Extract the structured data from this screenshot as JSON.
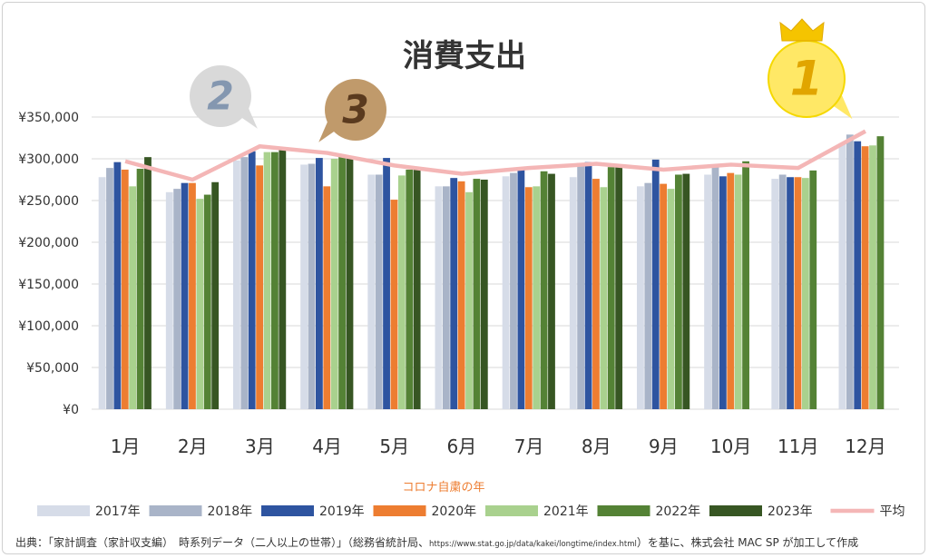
{
  "chart_data": {
    "type": "bar",
    "title": "消費支出",
    "categories": [
      "1月",
      "2月",
      "3月",
      "4月",
      "5月",
      "6月",
      "7月",
      "8月",
      "9月",
      "10月",
      "11月",
      "12月"
    ],
    "y_tick_labels": [
      "¥0",
      "¥50,000",
      "¥100,000",
      "¥150,000",
      "¥200,000",
      "¥250,000",
      "¥300,000",
      "¥350,000"
    ],
    "ylim": [
      0,
      350000
    ],
    "grid": true,
    "legend_position": "bottom",
    "series": [
      {
        "name": "2017年",
        "color": "#d6dce8",
        "values": [
          278000,
          260000,
          298000,
          293000,
          281000,
          267000,
          279000,
          278000,
          267000,
          281000,
          276000,
          318000
        ]
      },
      {
        "name": "2018年",
        "color": "#a9b4c8",
        "values": [
          289000,
          264000,
          302000,
          294000,
          281000,
          267000,
          283000,
          293000,
          271000,
          290000,
          281000,
          329000
        ]
      },
      {
        "name": "2019年",
        "color": "#2e54a0",
        "values": [
          296000,
          271000,
          309000,
          301000,
          301000,
          277000,
          287000,
          296000,
          299000,
          279000,
          278000,
          321000
        ]
      },
      {
        "name": "2020年",
        "color": "#ed7d31",
        "values": [
          287000,
          271000,
          292000,
          267000,
          251000,
          273000,
          266000,
          276000,
          270000,
          283000,
          278000,
          315000
        ]
      },
      {
        "name": "2021年",
        "color": "#a9d18e",
        "values": [
          267000,
          252000,
          308000,
          300000,
          280000,
          260000,
          267000,
          266000,
          264000,
          281000,
          277000,
          316000
        ]
      },
      {
        "name": "2022年",
        "color": "#548235",
        "values": [
          288000,
          257000,
          308000,
          304000,
          287000,
          276000,
          285000,
          290000,
          281000,
          297000,
          286000,
          327000
        ]
      },
      {
        "name": "2023年",
        "color": "#375623",
        "values": [
          302000,
          272000,
          313000,
          303000,
          287000,
          275000,
          282000,
          292000,
          282000,
          null,
          null,
          null
        ]
      }
    ],
    "average": {
      "name": "平均",
      "color": "#f4b6b6",
      "values": [
        297000,
        275000,
        315000,
        307000,
        292000,
        282000,
        289000,
        294000,
        287000,
        293000,
        289000,
        333000
      ]
    },
    "annotation": "コロナ自粛の年",
    "ranks": [
      {
        "label": "1",
        "month_index": 11,
        "fill": "#ffe866",
        "text_color": "#e1a500",
        "crown": true
      },
      {
        "label": "2",
        "month_index": 1,
        "fill": "#d9d9d9",
        "text_color": "#8497b0",
        "crown": false
      },
      {
        "label": "3",
        "month_index": 3,
        "fill": "#c09a6b",
        "text_color": "#5a3a1e",
        "crown": false
      }
    ],
    "source": "出典：「家計調査（家計収支編）　時系列データ（二人以上の世帯）」（総務省統計局、",
    "source_url": "https://www.stat.go.jp/data/kakei/longtime/index.html",
    "source_tail": "）を基に、株式会社 MAC SP が加工して作成"
  }
}
